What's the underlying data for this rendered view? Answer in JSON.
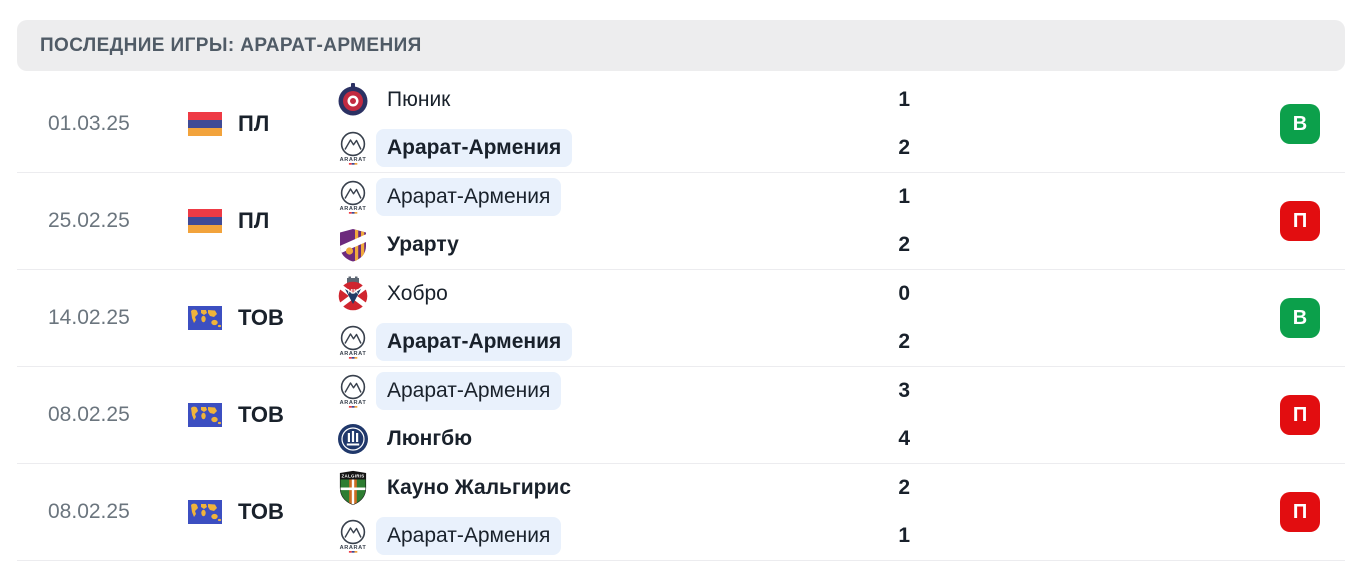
{
  "header": {
    "title": "ПОСЛЕДНИЕ ИГРЫ: АРАРАТ-АРМЕНИЯ"
  },
  "colors": {
    "win": "#0ca04b",
    "loss": "#e20d10",
    "highlight": "#e9f1fc",
    "header_bg": "#ededee",
    "flag_red": "#ee3a45",
    "flag_blue": "#3f4a96",
    "flag_orange": "#f2a33c"
  },
  "matches": [
    {
      "date": "01.03.25",
      "competition": {
        "label": "ПЛ",
        "icon": "armenia-flag-icon"
      },
      "teams": [
        {
          "name": "Пюник",
          "score": "1",
          "logo": "pyunik-logo",
          "emphasis": false,
          "highlighted": false
        },
        {
          "name": "Арарат-Армения",
          "score": "2",
          "logo": "ararat-armenia-logo",
          "emphasis": true,
          "highlighted": true
        }
      ],
      "result": {
        "label": "В",
        "type": "win"
      }
    },
    {
      "date": "25.02.25",
      "competition": {
        "label": "ПЛ",
        "icon": "armenia-flag-icon"
      },
      "teams": [
        {
          "name": "Арарат-Армения",
          "score": "1",
          "logo": "ararat-armenia-logo",
          "emphasis": false,
          "highlighted": true
        },
        {
          "name": "Урарту",
          "score": "2",
          "logo": "urartu-logo",
          "emphasis": true,
          "highlighted": false
        }
      ],
      "result": {
        "label": "П",
        "type": "loss"
      }
    },
    {
      "date": "14.02.25",
      "competition": {
        "label": "ТОВ",
        "icon": "world-map-icon"
      },
      "teams": [
        {
          "name": "Хобро",
          "score": "0",
          "logo": "hobro-logo",
          "emphasis": false,
          "highlighted": false
        },
        {
          "name": "Арарат-Армения",
          "score": "2",
          "logo": "ararat-armenia-logo",
          "emphasis": true,
          "highlighted": true
        }
      ],
      "result": {
        "label": "В",
        "type": "win"
      }
    },
    {
      "date": "08.02.25",
      "competition": {
        "label": "ТОВ",
        "icon": "world-map-icon"
      },
      "teams": [
        {
          "name": "Арарат-Армения",
          "score": "3",
          "logo": "ararat-armenia-logo",
          "emphasis": false,
          "highlighted": true
        },
        {
          "name": "Люнгбю",
          "score": "4",
          "logo": "lyngby-logo",
          "emphasis": true,
          "highlighted": false
        }
      ],
      "result": {
        "label": "П",
        "type": "loss"
      }
    },
    {
      "date": "08.02.25",
      "competition": {
        "label": "ТОВ",
        "icon": "world-map-icon"
      },
      "teams": [
        {
          "name": "Кауно Жальгирис",
          "score": "2",
          "logo": "kauno-zalgiris-logo",
          "emphasis": true,
          "highlighted": false
        },
        {
          "name": "Арарат-Армения",
          "score": "1",
          "logo": "ararat-armenia-logo",
          "emphasis": false,
          "highlighted": true
        }
      ],
      "result": {
        "label": "П",
        "type": "loss"
      }
    }
  ]
}
